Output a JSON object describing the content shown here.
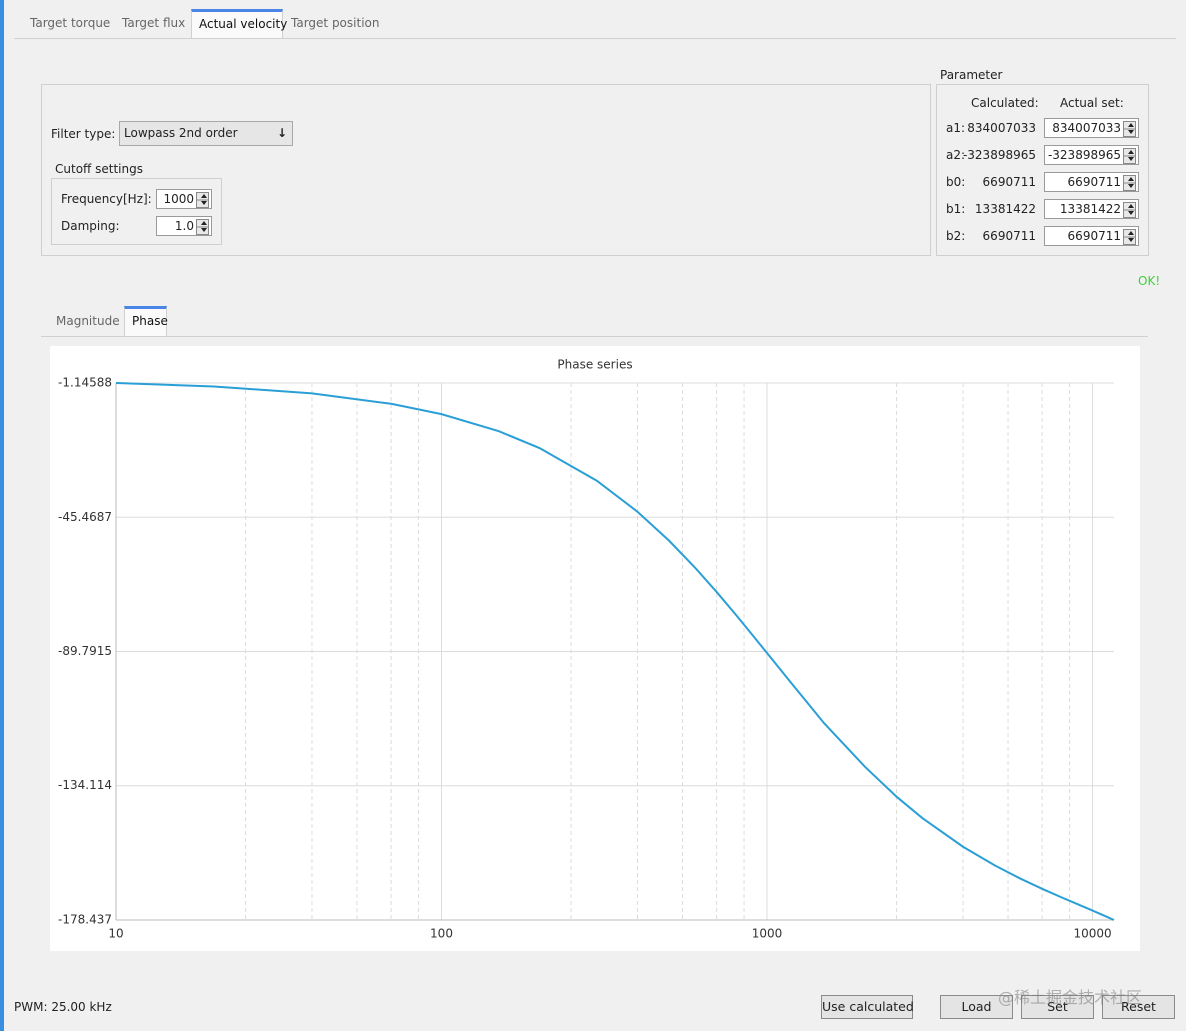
{
  "tabs": [
    "Target torque",
    "Target flux",
    "Actual velocity",
    "Target position"
  ],
  "filter": {
    "filter_type_label": "Filter type:",
    "filter_type": "Lowpass 2nd order",
    "cutoff_title": "Cutoff settings",
    "frequency_label": "Frequency[Hz]:",
    "frequency": "1000",
    "damping_label": "Damping:",
    "damping": "1.0"
  },
  "parameter": {
    "title": "Parameter",
    "calculated_header": "Calculated:",
    "actual_header": "Actual set:",
    "rows": [
      {
        "name": "a1:",
        "calculated": "834007033",
        "actual": "834007033"
      },
      {
        "name": "a2:",
        "calculated": "-323898965",
        "actual": "-323898965"
      },
      {
        "name": "b0:",
        "calculated": "6690711",
        "actual": "6690711"
      },
      {
        "name": "b1:",
        "calculated": "13381422",
        "actual": "13381422"
      },
      {
        "name": "b2:",
        "calculated": "6690711",
        "actual": "6690711"
      }
    ]
  },
  "status": "OK!",
  "plot_tabs": [
    "Magnitude",
    "Phase"
  ],
  "chart_data": {
    "type": "line",
    "title": "Phase series",
    "color": "#2a9fd6",
    "x": [
      10,
      20,
      40,
      70,
      100,
      150,
      200,
      300,
      400,
      500,
      600,
      700,
      800,
      900,
      1000,
      1200,
      1500,
      2000,
      2500,
      3000,
      4000,
      5000,
      6000,
      7000,
      8000,
      9000,
      10000,
      11000,
      11640
    ],
    "values": [
      -1.14588,
      -2.29,
      -4.58,
      -8.01,
      -11.42,
      -17.06,
      -22.62,
      -33.41,
      -43.64,
      -53.19,
      -62.02,
      -70.12,
      -77.5,
      -84.22,
      -90.3,
      -100.82,
      -113.56,
      -127.86,
      -137.73,
      -144.78,
      -154.25,
      -160.37,
      -164.76,
      -168.13,
      -170.88,
      -173.23,
      -175.32,
      -177.25,
      -178.437
    ],
    "log_x": true,
    "grid": true,
    "xlim": [
      10,
      11640
    ],
    "xticks": [
      10,
      100,
      1000,
      10000
    ],
    "x_minor_grid": [
      25,
      40,
      55,
      70,
      85,
      250,
      400,
      550,
      700,
      850,
      2500,
      4000,
      5500,
      7000,
      8500
    ],
    "ylim": [
      -178.437,
      -1.14588
    ],
    "yticks": [
      -1.14588,
      -45.4687,
      -89.7915,
      -134.114,
      -178.437
    ]
  },
  "footer": {
    "pwm": "PWM: 25.00 kHz",
    "buttons": [
      "Use calculated",
      "Load",
      "Set",
      "Reset"
    ]
  },
  "watermark": "@稀土掘金技术社区"
}
